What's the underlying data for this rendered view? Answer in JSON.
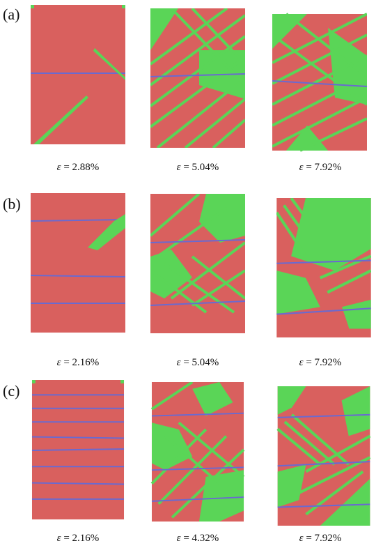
{
  "colors": {
    "matrix": "#d9605e",
    "twin": "#5ad557",
    "boundary": "#6a6ad0"
  },
  "rows": [
    {
      "label": "(a)",
      "captions": [
        {
          "eps": "ε",
          "text": "= 2.88%"
        },
        {
          "eps": "ε",
          "text": "= 5.04%"
        },
        {
          "eps": "ε",
          "text": "= 7.92%"
        }
      ]
    },
    {
      "label": "(b)",
      "captions": [
        {
          "eps": "ε",
          "text": "= 2.16%"
        },
        {
          "eps": "ε",
          "text": "= 5.04%"
        },
        {
          "eps": "ε",
          "text": "= 7.92%"
        }
      ]
    },
    {
      "label": "(c)",
      "captions": [
        {
          "eps": "ε",
          "text": "= 2.16%"
        },
        {
          "eps": "ε",
          "text": "= 4.32%"
        },
        {
          "eps": "ε",
          "text": "= 7.92%"
        }
      ]
    }
  ]
}
